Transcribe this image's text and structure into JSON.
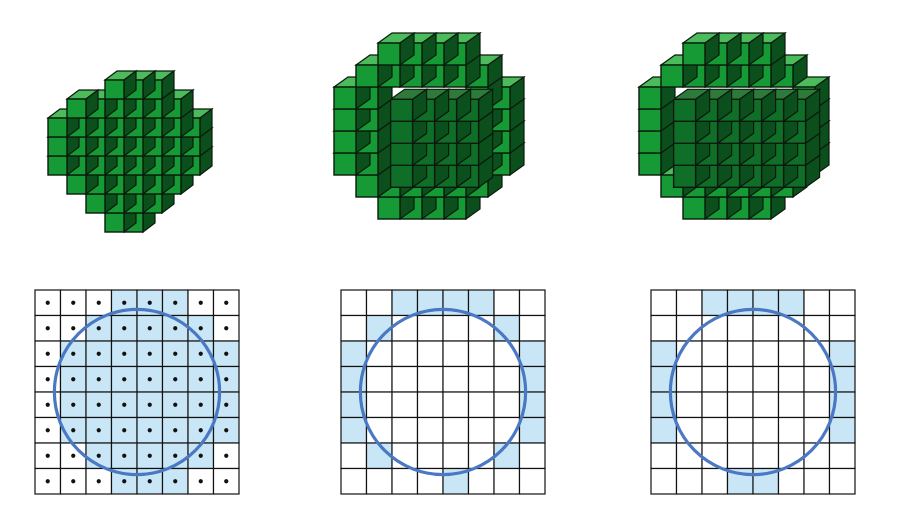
{
  "colors": {
    "voxel_top": "#4cbb5c",
    "voxel_front": "#169a35",
    "voxel_side": "#0b4f1c",
    "voxel_edge": "#0a1a0c",
    "cell_fill": "#c9e6f7",
    "grid_line": "#111111",
    "circle": "#4a78c2",
    "dot": "#111111",
    "background": "#ffffff"
  },
  "panels": [
    {
      "id": "filled",
      "voxel_rows": [
        [
          3,
          6
        ],
        [
          1,
          7
        ],
        [
          0,
          8
        ],
        [
          0,
          8
        ],
        [
          0,
          8
        ],
        [
          1,
          7
        ],
        [
          2,
          6
        ],
        [
          3,
          5
        ]
      ],
      "grid": {
        "cols": 8,
        "rows": 8,
        "show_dots": true,
        "filled": [
          "00011100",
          "00111110",
          "01111111",
          "01111111",
          "01111111",
          "01111111",
          "00111110",
          "00011100"
        ]
      }
    },
    {
      "id": "thin-ring",
      "voxel_rows": [
        [
          2,
          6
        ],
        [
          1,
          7
        ],
        [
          0,
          8
        ],
        [
          0,
          8
        ],
        [
          0,
          8
        ],
        [
          0,
          8
        ],
        [
          1,
          7
        ],
        [
          2,
          6
        ]
      ],
      "hollow": [
        [
          2,
          6
        ],
        [
          2,
          6
        ],
        [
          2,
          6
        ],
        [
          2,
          6
        ]
      ],
      "grid": {
        "cols": 8,
        "rows": 8,
        "show_dots": false,
        "filled": [
          "00111100",
          "01000010",
          "10000001",
          "10000001",
          "10000001",
          "10000001",
          "01000010",
          "00001000"
        ]
      }
    },
    {
      "id": "thick-ring",
      "voxel_rows": [
        [
          2,
          6
        ],
        [
          1,
          7
        ],
        [
          0,
          8
        ],
        [
          0,
          8
        ],
        [
          0,
          8
        ],
        [
          0,
          8
        ],
        [
          1,
          7
        ],
        [
          2,
          6
        ]
      ],
      "hollow": [
        [
          1,
          7
        ],
        [
          1,
          7
        ],
        [
          1,
          7
        ],
        [
          1,
          7
        ]
      ],
      "grid": {
        "cols": 8,
        "rows": 8,
        "show_dots": false,
        "filled": [
          "00111100",
          "00000000",
          "10000001",
          "10000001",
          "10000001",
          "10000001",
          "00000000",
          "00011000"
        ]
      }
    }
  ]
}
